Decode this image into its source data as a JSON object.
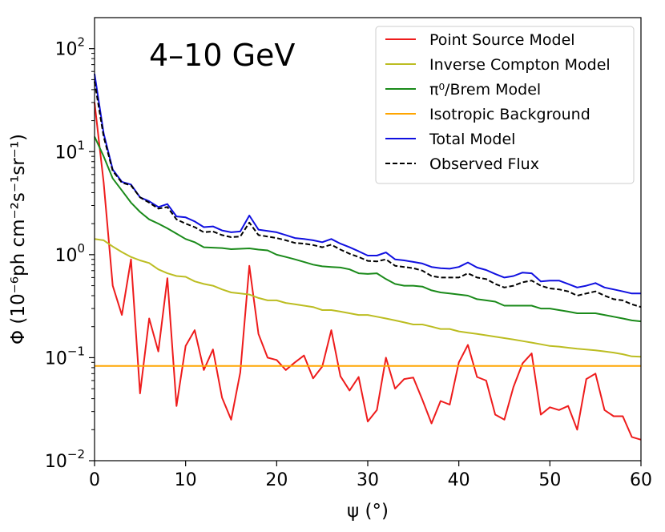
{
  "chart_data": {
    "type": "line",
    "title": "",
    "annotation": "4–10 GeV",
    "xlabel": "ψ (°)",
    "ylabel": "Φ (10⁻⁶ph cm⁻²s⁻¹sr⁻¹)",
    "xlim": [
      0,
      60
    ],
    "ylim": [
      0.01,
      200
    ],
    "yscale": "log",
    "grid": false,
    "legend_position": "top-right",
    "x_ticks": [
      0,
      10,
      20,
      30,
      40,
      50,
      60
    ],
    "x_tick_labels": [
      "0",
      "10",
      "20",
      "30",
      "40",
      "50",
      "60"
    ],
    "y_ticks": [
      0.01,
      0.1,
      1,
      10,
      100
    ],
    "y_tick_labels": [
      {
        "base": "10",
        "exp": "−2"
      },
      {
        "base": "10",
        "exp": "−1"
      },
      {
        "base": "10",
        "exp": "0"
      },
      {
        "base": "10",
        "exp": "1"
      },
      {
        "base": "10",
        "exp": "2"
      }
    ],
    "series": [
      {
        "name": "Point Source Model",
        "color": "#ee1c1c",
        "dash": "solid",
        "x": [
          0,
          1,
          2,
          3,
          4,
          5,
          6,
          7,
          8,
          9,
          10,
          11,
          12,
          13,
          14,
          15,
          16,
          17,
          18,
          19,
          20,
          21,
          22,
          23,
          24,
          25,
          26,
          27,
          28,
          29,
          30,
          31,
          32,
          33,
          34,
          35,
          36,
          37,
          38,
          39,
          40,
          41,
          42,
          43,
          44,
          45,
          46,
          47,
          48,
          49,
          50,
          51,
          52,
          53,
          54,
          55,
          56,
          57,
          58,
          59,
          60
        ],
        "y": [
          30,
          5,
          0.5,
          0.26,
          0.9,
          0.045,
          0.24,
          0.115,
          0.59,
          0.034,
          0.13,
          0.185,
          0.076,
          0.12,
          0.041,
          0.025,
          0.072,
          0.78,
          0.17,
          0.1,
          0.095,
          0.076,
          0.09,
          0.105,
          0.063,
          0.082,
          0.185,
          0.066,
          0.048,
          0.065,
          0.024,
          0.031,
          0.1,
          0.05,
          0.062,
          0.064,
          0.039,
          0.023,
          0.038,
          0.035,
          0.09,
          0.133,
          0.065,
          0.06,
          0.028,
          0.025,
          0.052,
          0.088,
          0.11,
          0.028,
          0.033,
          0.031,
          0.034,
          0.02,
          0.062,
          0.07,
          0.031,
          0.027,
          0.027,
          0.017,
          0.016
        ]
      },
      {
        "name": "Inverse Compton Model",
        "color": "#bcbd22",
        "dash": "solid",
        "x": [
          0,
          1,
          2,
          3,
          4,
          5,
          6,
          7,
          8,
          9,
          10,
          11,
          12,
          13,
          14,
          15,
          16,
          17,
          18,
          19,
          20,
          21,
          22,
          23,
          24,
          25,
          26,
          27,
          28,
          29,
          30,
          31,
          32,
          33,
          34,
          35,
          36,
          37,
          38,
          39,
          40,
          41,
          42,
          43,
          44,
          45,
          46,
          47,
          48,
          49,
          50,
          51,
          52,
          53,
          54,
          55,
          56,
          57,
          58,
          59,
          60
        ],
        "y": [
          1.42,
          1.38,
          1.2,
          1.06,
          0.95,
          0.88,
          0.83,
          0.72,
          0.66,
          0.62,
          0.61,
          0.55,
          0.52,
          0.5,
          0.46,
          0.43,
          0.42,
          0.41,
          0.38,
          0.36,
          0.36,
          0.34,
          0.33,
          0.32,
          0.31,
          0.29,
          0.29,
          0.28,
          0.27,
          0.26,
          0.26,
          0.25,
          0.24,
          0.23,
          0.22,
          0.21,
          0.21,
          0.2,
          0.19,
          0.19,
          0.18,
          0.175,
          0.17,
          0.165,
          0.16,
          0.155,
          0.15,
          0.145,
          0.14,
          0.135,
          0.13,
          0.128,
          0.125,
          0.122,
          0.12,
          0.118,
          0.115,
          0.112,
          0.108,
          0.103,
          0.102
        ]
      },
      {
        "name": "π⁰/Brem Model",
        "color": "#1a8a1a",
        "dash": "solid",
        "x": [
          0,
          1,
          2,
          3,
          4,
          5,
          6,
          7,
          8,
          9,
          10,
          11,
          12,
          13,
          14,
          15,
          16,
          17,
          18,
          19,
          20,
          21,
          22,
          23,
          24,
          25,
          26,
          27,
          28,
          29,
          30,
          31,
          32,
          33,
          34,
          35,
          36,
          37,
          38,
          39,
          40,
          41,
          42,
          43,
          44,
          45,
          46,
          47,
          48,
          49,
          50,
          51,
          52,
          53,
          54,
          55,
          56,
          57,
          58,
          59,
          60
        ],
        "y": [
          14,
          9,
          5.5,
          4.2,
          3.2,
          2.6,
          2.2,
          2.0,
          1.8,
          1.6,
          1.42,
          1.32,
          1.18,
          1.17,
          1.16,
          1.13,
          1.14,
          1.15,
          1.12,
          1.1,
          1.0,
          0.95,
          0.9,
          0.85,
          0.8,
          0.77,
          0.76,
          0.75,
          0.72,
          0.66,
          0.65,
          0.66,
          0.58,
          0.52,
          0.5,
          0.5,
          0.49,
          0.45,
          0.43,
          0.42,
          0.41,
          0.4,
          0.37,
          0.36,
          0.35,
          0.32,
          0.32,
          0.32,
          0.32,
          0.3,
          0.3,
          0.29,
          0.28,
          0.27,
          0.27,
          0.27,
          0.26,
          0.25,
          0.24,
          0.23,
          0.225
        ]
      },
      {
        "name": "Isotropic Background",
        "color": "#ffa500",
        "dash": "solid",
        "x": [
          0,
          60
        ],
        "y": [
          0.083,
          0.083
        ]
      },
      {
        "name": "Total Model",
        "color": "#1010e0",
        "dash": "solid",
        "x": [
          0,
          1,
          2,
          3,
          4,
          5,
          6,
          7,
          8,
          9,
          10,
          11,
          12,
          13,
          14,
          15,
          16,
          17,
          18,
          19,
          20,
          21,
          22,
          23,
          24,
          25,
          26,
          27,
          28,
          29,
          30,
          31,
          32,
          33,
          34,
          35,
          36,
          37,
          38,
          39,
          40,
          41,
          42,
          43,
          44,
          45,
          46,
          47,
          48,
          49,
          50,
          51,
          52,
          53,
          54,
          55,
          56,
          57,
          58,
          59,
          60
        ],
        "y": [
          57,
          15,
          6.7,
          5.1,
          4.8,
          3.6,
          3.3,
          2.9,
          3.1,
          2.35,
          2.3,
          2.1,
          1.85,
          1.88,
          1.72,
          1.65,
          1.68,
          2.4,
          1.75,
          1.7,
          1.65,
          1.55,
          1.45,
          1.42,
          1.38,
          1.32,
          1.42,
          1.28,
          1.18,
          1.08,
          0.98,
          0.98,
          1.05,
          0.9,
          0.88,
          0.85,
          0.82,
          0.76,
          0.74,
          0.73,
          0.76,
          0.84,
          0.75,
          0.71,
          0.65,
          0.6,
          0.62,
          0.67,
          0.66,
          0.55,
          0.56,
          0.56,
          0.52,
          0.48,
          0.5,
          0.53,
          0.48,
          0.46,
          0.44,
          0.42,
          0.42
        ]
      },
      {
        "name": "Observed Flux",
        "color": "#000000",
        "dash": "dashed",
        "x": [
          0,
          1,
          2,
          3,
          4,
          5,
          6,
          7,
          8,
          9,
          10,
          11,
          12,
          13,
          14,
          15,
          16,
          17,
          18,
          19,
          20,
          21,
          22,
          23,
          24,
          25,
          26,
          27,
          28,
          29,
          30,
          31,
          32,
          33,
          34,
          35,
          36,
          37,
          38,
          39,
          40,
          41,
          42,
          43,
          44,
          45,
          46,
          47,
          48,
          49,
          50,
          51,
          52,
          53,
          54,
          55,
          56,
          57,
          58,
          59,
          60
        ],
        "y": [
          48,
          14,
          6.5,
          5.0,
          4.7,
          3.6,
          3.2,
          2.8,
          2.9,
          2.2,
          2.0,
          1.85,
          1.65,
          1.68,
          1.55,
          1.48,
          1.5,
          2.05,
          1.55,
          1.5,
          1.45,
          1.38,
          1.3,
          1.28,
          1.24,
          1.18,
          1.25,
          1.12,
          1.02,
          0.95,
          0.87,
          0.86,
          0.9,
          0.78,
          0.76,
          0.74,
          0.7,
          0.62,
          0.6,
          0.6,
          0.6,
          0.66,
          0.6,
          0.58,
          0.52,
          0.48,
          0.5,
          0.54,
          0.56,
          0.5,
          0.47,
          0.46,
          0.44,
          0.4,
          0.42,
          0.44,
          0.4,
          0.37,
          0.36,
          0.33,
          0.31
        ]
      }
    ]
  }
}
